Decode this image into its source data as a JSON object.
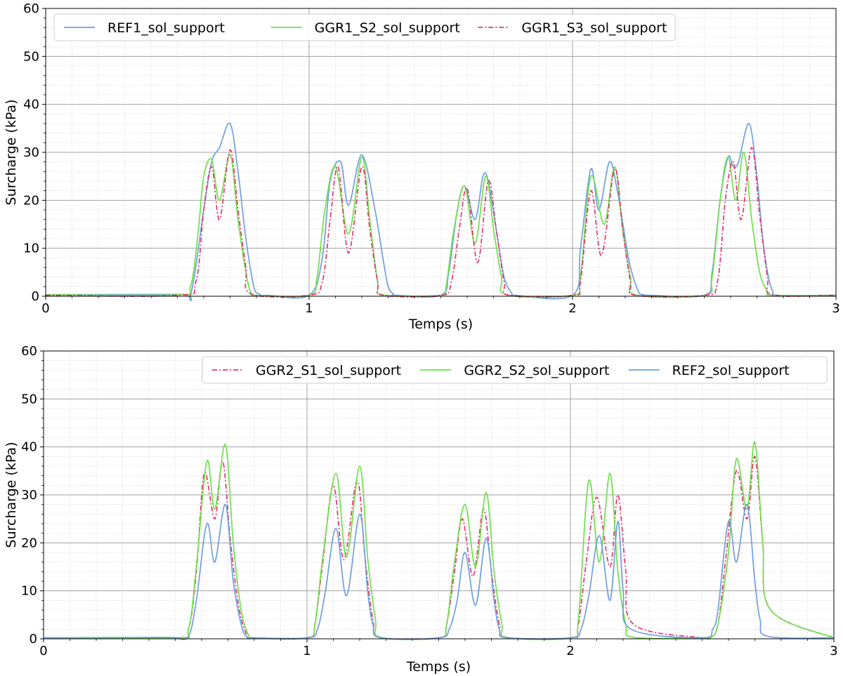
{
  "chart_data": [
    {
      "type": "line",
      "title": "",
      "xlabel": "Temps (s)",
      "ylabel": "Surcharge (kPa)",
      "xlim": [
        0,
        3
      ],
      "ylim": [
        0,
        60
      ],
      "xticks": [
        0,
        1,
        2,
        3
      ],
      "yticks": [
        0,
        10,
        20,
        30,
        40,
        50,
        60
      ],
      "grid": "major and minor",
      "legend_position": "top-left",
      "series": [
        {
          "name": "REF1_sol_support",
          "color": "#6f9fe0",
          "style": "solid",
          "x": [
            0,
            0.5,
            0.55,
            0.6,
            0.63,
            0.66,
            0.7,
            0.73,
            0.76,
            0.79,
            0.81,
            0.82,
            0.84,
            1.0,
            1.05,
            1.08,
            1.12,
            1.15,
            1.2,
            1.25,
            1.28,
            1.3,
            1.32,
            1.33,
            1.5,
            1.53,
            1.56,
            1.59,
            1.63,
            1.66,
            1.68,
            1.71,
            1.74,
            1.77,
            1.78,
            2.0,
            2.03,
            2.07,
            2.1,
            2.14,
            2.17,
            2.2,
            2.22,
            2.25,
            2.27,
            2.29,
            2.5,
            2.53,
            2.56,
            2.59,
            2.61,
            2.63,
            2.67,
            2.7,
            2.72,
            2.74,
            2.76,
            2.78,
            3.0
          ],
          "y": [
            0.3,
            0.4,
            0.4,
            18,
            28,
            31,
            36,
            26,
            12,
            2,
            0.5,
            0.2,
            0.2,
            0.2,
            8,
            24,
            28,
            19,
            29.5,
            18,
            8,
            2,
            0.5,
            0.2,
            0.2,
            5,
            17,
            23,
            16,
            25,
            24,
            14,
            4,
            0.5,
            0.2,
            0.2,
            10,
            26.5,
            18,
            28,
            22,
            12,
            6,
            1,
            0.3,
            0.2,
            0.2,
            5,
            20,
            29,
            27,
            28,
            36,
            25,
            13,
            5,
            1,
            0.2,
            0.2
          ]
        },
        {
          "name": "GGR1_S2_sol_support",
          "color": "#6ee04a",
          "style": "solid",
          "x": [
            0,
            0.5,
            0.55,
            0.58,
            0.6,
            0.63,
            0.66,
            0.7,
            0.73,
            0.76,
            0.78,
            0.8,
            1.0,
            1.03,
            1.06,
            1.1,
            1.15,
            1.2,
            1.23,
            1.26,
            1.28,
            1.5,
            1.52,
            1.55,
            1.59,
            1.63,
            1.67,
            1.7,
            1.73,
            1.75,
            2.0,
            2.03,
            2.07,
            2.12,
            2.16,
            2.19,
            2.22,
            2.24,
            2.5,
            2.53,
            2.56,
            2.59,
            2.62,
            2.65,
            2.68,
            2.71,
            2.74,
            2.76,
            3.0
          ],
          "y": [
            0.3,
            0.3,
            2,
            14,
            25,
            28.5,
            20,
            29.5,
            16,
            5,
            0.5,
            0.2,
            0.2,
            4,
            18,
            27,
            13,
            29,
            16,
            3,
            0.3,
            0.2,
            2,
            14,
            23,
            11,
            25,
            14,
            4,
            0.3,
            0.2,
            4,
            25,
            15,
            27,
            14,
            4,
            0.3,
            0.2,
            4,
            20,
            29,
            20,
            30,
            16,
            5,
            1,
            0.2,
            0.2
          ]
        },
        {
          "name": "GGR1_S3_sol_support",
          "color": "#e8336e",
          "style": "dashdot",
          "x": [
            0,
            0.5,
            0.57,
            0.6,
            0.63,
            0.66,
            0.7,
            0.73,
            0.76,
            0.78,
            1.0,
            1.05,
            1.08,
            1.11,
            1.15,
            1.2,
            1.23,
            1.26,
            1.28,
            1.5,
            1.54,
            1.57,
            1.6,
            1.64,
            1.68,
            1.71,
            1.74,
            1.76,
            2.0,
            2.03,
            2.07,
            2.11,
            2.16,
            2.19,
            2.22,
            2.24,
            2.5,
            2.55,
            2.58,
            2.61,
            2.64,
            2.68,
            2.71,
            2.74,
            2.76,
            3.0
          ],
          "y": [
            0.2,
            0.2,
            3,
            18,
            27,
            16,
            30.5,
            18,
            6,
            0.5,
            0.2,
            3,
            16,
            27,
            9,
            27,
            14,
            3,
            0.2,
            0.2,
            3,
            14,
            22.5,
            7,
            24,
            14,
            3,
            0.2,
            0.2,
            3,
            22,
            8.5,
            26.5,
            14,
            3,
            0.2,
            0.2,
            3,
            20,
            28,
            16,
            31,
            17,
            4,
            0.3,
            0.2
          ]
        }
      ]
    },
    {
      "type": "line",
      "title": "",
      "xlabel": "Temps (s)",
      "ylabel": "Surcharge (kPa)",
      "xlim": [
        0,
        3
      ],
      "ylim": [
        0,
        60
      ],
      "xticks": [
        0,
        1,
        2,
        3
      ],
      "yticks": [
        0,
        10,
        20,
        30,
        40,
        50,
        60
      ],
      "grid": "major and minor",
      "legend_position": "top-right",
      "series": [
        {
          "name": "GGR2_S1_sol_support",
          "color": "#e8336e",
          "style": "dashdot",
          "x": [
            0,
            0.5,
            0.55,
            0.58,
            0.61,
            0.65,
            0.68,
            0.71,
            0.74,
            0.77,
            0.8,
            1.0,
            1.03,
            1.06,
            1.1,
            1.14,
            1.19,
            1.22,
            1.25,
            1.28,
            1.5,
            1.53,
            1.56,
            1.59,
            1.63,
            1.67,
            1.7,
            1.73,
            1.76,
            2.0,
            2.03,
            2.06,
            2.1,
            2.15,
            2.18,
            2.21,
            2.24,
            2.5,
            2.53,
            2.56,
            2.59,
            2.63,
            2.67,
            2.7,
            2.73,
            2.76,
            3.0
          ],
          "y": [
            0.2,
            0.2,
            2,
            14,
            34.5,
            25,
            37,
            20,
            7,
            1,
            0.2,
            0.2,
            3,
            16,
            32,
            16.5,
            33,
            17,
            4,
            0.3,
            0.2,
            3,
            14,
            25,
            13,
            27,
            14,
            3,
            0.3,
            0.2,
            3,
            16,
            29.5,
            15,
            30,
            14,
            3,
            0.2,
            0.2,
            3,
            17,
            35,
            25,
            38,
            20,
            6,
            0.2
          ]
        },
        {
          "name": "GGR2_S2_sol_support",
          "color": "#6ee04a",
          "style": "solid",
          "x": [
            0,
            0.5,
            0.55,
            0.58,
            0.62,
            0.65,
            0.69,
            0.72,
            0.75,
            0.78,
            0.8,
            1.0,
            1.03,
            1.06,
            1.11,
            1.15,
            1.2,
            1.23,
            1.26,
            1.28,
            1.5,
            1.53,
            1.56,
            1.6,
            1.64,
            1.68,
            1.71,
            1.74,
            1.76,
            2.0,
            2.03,
            2.07,
            2.11,
            2.15,
            2.18,
            2.21,
            2.24,
            2.5,
            2.53,
            2.56,
            2.6,
            2.63,
            2.67,
            2.7,
            2.73,
            2.76,
            3.0
          ],
          "y": [
            0.2,
            0.2,
            2,
            15,
            37,
            27,
            40.5,
            20,
            6,
            0.5,
            0.2,
            0.2,
            3,
            17,
            34.5,
            17,
            36,
            17,
            4,
            0.3,
            0.2,
            3,
            16,
            28,
            15,
            30.5,
            14,
            3,
            0.3,
            0.2,
            4,
            33,
            16,
            34.5,
            14,
            3,
            0.3,
            0.2,
            0.2,
            3,
            18,
            37.5,
            27,
            41,
            20,
            6,
            0.2
          ]
        },
        {
          "name": "REF2_sol_support",
          "color": "#6f9fe0",
          "style": "solid",
          "x": [
            0,
            0.45,
            0.5,
            0.55,
            0.58,
            0.62,
            0.65,
            0.69,
            0.72,
            0.75,
            0.77,
            0.8,
            1.0,
            1.04,
            1.07,
            1.11,
            1.15,
            1.2,
            1.23,
            1.25,
            1.28,
            1.5,
            1.54,
            1.57,
            1.6,
            1.64,
            1.68,
            1.71,
            1.73,
            1.76,
            2.0,
            2.04,
            2.07,
            2.11,
            2.15,
            2.18,
            2.2,
            2.23,
            2.5,
            2.54,
            2.56,
            2.6,
            2.63,
            2.67,
            2.7,
            2.72,
            2.75,
            3.0
          ],
          "y": [
            0.2,
            0.3,
            0.2,
            0.5,
            8,
            24,
            16,
            28,
            12,
            3,
            0.5,
            0.2,
            0.2,
            2,
            10,
            23,
            9,
            26,
            10,
            3,
            0.2,
            0.2,
            2,
            8,
            18,
            7,
            21,
            8,
            2,
            0.2,
            0.2,
            2,
            9,
            21.5,
            8,
            24.5,
            10,
            2,
            0.2,
            2,
            6,
            24.5,
            16,
            28,
            12,
            4,
            0.5,
            0.2
          ]
        }
      ]
    }
  ]
}
